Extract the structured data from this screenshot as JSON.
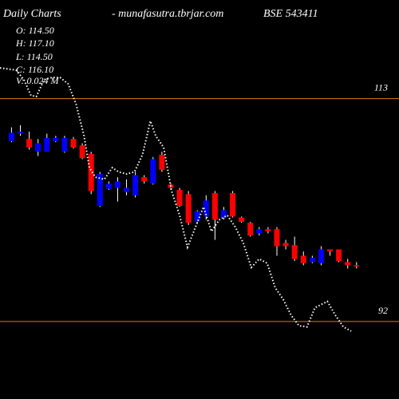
{
  "chart_data": {
    "type": "candlestick",
    "title": "Daily Charts",
    "subtitle": "- munafasutra.tbrjar.com",
    "symbol": "BSE 543411",
    "annotations": [
      "O: 114.50",
      "H: 117.10",
      "L: 114.50",
      "C: 116.10",
      "V: 0.024 M"
    ],
    "xlim": [
      -0.3,
      44.8
    ],
    "ylim": [
      84.7,
      122.3
    ],
    "levels": [
      113,
      92
    ],
    "level_color": "#e07b00",
    "up_color": "#0000ff",
    "down_color": "#ff0000",
    "line_color": "#ffffff",
    "candles": {
      "x": [
        1,
        2,
        3,
        4,
        5,
        6,
        7,
        8,
        9,
        10,
        11,
        12,
        13,
        14,
        15,
        16,
        17,
        18,
        19,
        20,
        21,
        22,
        23,
        24,
        25,
        26,
        27,
        28,
        29,
        30,
        31,
        32,
        33,
        34,
        35,
        36,
        37,
        38,
        39,
        40
      ],
      "open": [
        109.0,
        109.7,
        109.2,
        108.0,
        108.0,
        109.0,
        108.0,
        109.2,
        108.6,
        107.8,
        102.9,
        104.5,
        104.6,
        104.2,
        103.9,
        105.6,
        105.0,
        107.7,
        104.9,
        104.4,
        104.0,
        101.4,
        101.9,
        104.1,
        101.8,
        104.1,
        101.8,
        101.3,
        100.3,
        100.7,
        100.7,
        99.4,
        99.2,
        98.2,
        97.6,
        97.5,
        98.8,
        98.8,
        97.6,
        97.3
      ],
      "high": [
        110.3,
        110.5,
        109.9,
        109.2,
        109.7,
        109.5,
        109.5,
        109.4,
        108.8,
        108.0,
        106.1,
        105.2,
        105.6,
        105.4,
        106.1,
        105.8,
        107.5,
        108.0,
        105.0,
        104.6,
        104.3,
        102.5,
        103.9,
        104.3,
        102.8,
        104.3,
        101.9,
        101.4,
        100.9,
        100.9,
        100.9,
        99.7,
        100.0,
        98.6,
        98.2,
        99.1,
        98.8,
        98.8,
        97.9,
        97.6
      ],
      "low": [
        108.9,
        109.5,
        108.2,
        107.6,
        108.0,
        108.9,
        107.9,
        108.3,
        107.3,
        104.0,
        102.8,
        104.4,
        103.3,
        103.9,
        103.7,
        105.0,
        104.9,
        106.1,
        104.4,
        102.8,
        101.1,
        101.3,
        101.6,
        99.7,
        101.6,
        101.8,
        101.3,
        100.0,
        100.1,
        100.3,
        98.2,
        98.8,
        97.7,
        97.3,
        97.5,
        97.3,
        98.2,
        97.6,
        97.0,
        97.0
      ],
      "close": [
        109.8,
        109.9,
        108.4,
        108.8,
        109.3,
        109.3,
        109.3,
        108.4,
        107.4,
        104.3,
        105.9,
        105.0,
        105.2,
        104.6,
        105.8,
        105.2,
        107.3,
        106.3,
        104.6,
        102.9,
        101.3,
        102.4,
        103.4,
        101.6,
        102.5,
        101.9,
        101.4,
        100.1,
        100.7,
        100.5,
        99.1,
        99.1,
        97.9,
        97.5,
        98.0,
        98.8,
        98.6,
        97.7,
        97.3,
        97.3
      ]
    },
    "series": [
      {
        "x": [
          -0.3,
          1.5,
          2.4,
          3.2,
          3.8,
          4.7,
          5.6,
          6.5,
          7.4,
          8.3,
          9.2,
          9.8,
          10.5,
          11.5,
          12.4,
          13.1,
          14.0,
          14.9,
          15.8,
          16.7,
          17.3,
          18.2,
          19.1,
          20.0,
          20.9,
          21.8,
          22.7,
          23.6,
          24.5,
          25.4,
          26.3,
          27.2,
          28.1,
          29.0,
          29.9,
          30.8,
          31.7,
          32.6,
          33.5,
          34.4,
          35.3,
          36.7,
          37.6,
          38.5,
          39.4
        ],
        "values": [
          115.9,
          115.7,
          114.8,
          113.3,
          113.2,
          114.8,
          115.0,
          115.0,
          114.4,
          112.5,
          109.5,
          106.5,
          105.6,
          105.4,
          106.5,
          106.1,
          105.9,
          106.1,
          107.7,
          110.9,
          109.5,
          108.4,
          104.3,
          102.0,
          99.0,
          100.9,
          102.8,
          100.5,
          101.6,
          102.0,
          100.9,
          99.4,
          97.1,
          97.9,
          97.5,
          95.2,
          94.1,
          92.6,
          91.6,
          91.5,
          93.3,
          93.9,
          92.6,
          91.5,
          91.1
        ]
      }
    ]
  }
}
